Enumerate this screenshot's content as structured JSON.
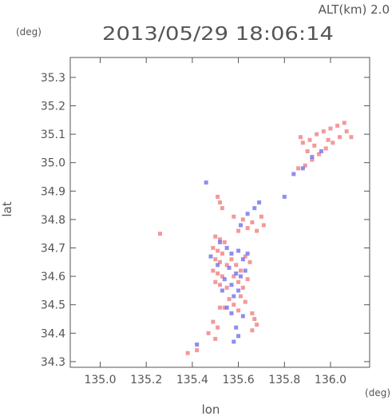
{
  "header": {
    "altitude_label": "ALT(km) 2.0",
    "timestamp": "2013/05/29 18:06:14"
  },
  "units": {
    "y_unit": "(deg)",
    "x_unit": "(deg)"
  },
  "colors": {
    "positive": "#f08080",
    "negative": "#7070f0",
    "axis": "#555555"
  },
  "chart_data": {
    "type": "scatter",
    "xlabel": "lon",
    "ylabel": "lat",
    "xlim": [
      134.87,
      136.17
    ],
    "ylim": [
      34.28,
      35.37
    ],
    "x_ticks": [
      135.0,
      135.2,
      135.4,
      135.6,
      135.8,
      136.0
    ],
    "x_tick_labels": [
      "135.0",
      "135.2",
      "135.4",
      "135.6",
      "135.8",
      "136.0"
    ],
    "y_ticks": [
      34.3,
      34.4,
      34.5,
      34.6,
      34.7,
      34.8,
      34.9,
      35.0,
      35.1,
      35.2,
      35.3
    ],
    "y_tick_labels": [
      "34.3",
      "34.4",
      "34.5",
      "34.6",
      "34.7",
      "34.8",
      "34.9",
      "35.0",
      "35.1",
      "35.2",
      "35.3"
    ],
    "grid": false,
    "series": [
      {
        "color_key": "positive",
        "points": [
          [
            135.51,
            34.88
          ],
          [
            135.52,
            34.86
          ],
          [
            135.53,
            34.84
          ],
          [
            135.5,
            34.74
          ],
          [
            135.52,
            34.73
          ],
          [
            135.54,
            34.72
          ],
          [
            135.49,
            34.7
          ],
          [
            135.51,
            34.69
          ],
          [
            135.53,
            34.68
          ],
          [
            135.5,
            34.66
          ],
          [
            135.52,
            34.65
          ],
          [
            135.55,
            34.64
          ],
          [
            135.49,
            34.62
          ],
          [
            135.51,
            34.61
          ],
          [
            135.53,
            34.6
          ],
          [
            135.5,
            34.58
          ],
          [
            135.52,
            34.57
          ],
          [
            135.55,
            34.56
          ],
          [
            135.57,
            34.66
          ],
          [
            135.59,
            34.64
          ],
          [
            135.61,
            34.62
          ],
          [
            135.58,
            34.6
          ],
          [
            135.6,
            34.58
          ],
          [
            135.63,
            34.67
          ],
          [
            135.65,
            34.65
          ],
          [
            135.62,
            34.56
          ],
          [
            135.64,
            34.59
          ],
          [
            135.56,
            34.52
          ],
          [
            135.58,
            34.5
          ],
          [
            135.6,
            34.48
          ],
          [
            135.61,
            34.53
          ],
          [
            135.63,
            34.51
          ],
          [
            135.66,
            34.47
          ],
          [
            135.67,
            34.45
          ],
          [
            135.68,
            34.43
          ],
          [
            135.66,
            34.41
          ],
          [
            135.52,
            34.49
          ],
          [
            135.54,
            34.49
          ],
          [
            135.49,
            34.44
          ],
          [
            135.51,
            34.42
          ],
          [
            135.47,
            34.4
          ],
          [
            135.5,
            34.38
          ],
          [
            135.6,
            34.76
          ],
          [
            135.62,
            34.8
          ],
          [
            135.66,
            34.79
          ],
          [
            135.7,
            34.81
          ],
          [
            135.71,
            34.78
          ],
          [
            135.64,
            34.77
          ],
          [
            135.58,
            34.81
          ],
          [
            135.68,
            34.76
          ],
          [
            135.38,
            34.33
          ],
          [
            135.42,
            34.34
          ],
          [
            135.26,
            34.75
          ],
          [
            135.86,
            34.98
          ],
          [
            135.89,
            34.99
          ],
          [
            135.92,
            35.01
          ],
          [
            135.95,
            35.03
          ],
          [
            135.98,
            35.05
          ],
          [
            136.01,
            35.07
          ],
          [
            136.04,
            35.09
          ],
          [
            136.07,
            35.11
          ],
          [
            136.09,
            35.09
          ],
          [
            135.88,
            35.07
          ],
          [
            135.91,
            35.08
          ],
          [
            135.94,
            35.1
          ],
          [
            135.97,
            35.11
          ],
          [
            136.0,
            35.12
          ],
          [
            136.03,
            35.13
          ],
          [
            136.06,
            35.14
          ],
          [
            135.9,
            35.04
          ],
          [
            135.93,
            35.06
          ],
          [
            135.87,
            35.09
          ],
          [
            135.99,
            35.08
          ]
        ]
      },
      {
        "color_key": "negative",
        "points": [
          [
            135.52,
            34.72
          ],
          [
            135.55,
            34.7
          ],
          [
            135.57,
            34.68
          ],
          [
            135.6,
            34.69
          ],
          [
            135.62,
            34.66
          ],
          [
            135.64,
            34.68
          ],
          [
            135.56,
            34.63
          ],
          [
            135.59,
            34.61
          ],
          [
            135.61,
            34.6
          ],
          [
            135.54,
            34.59
          ],
          [
            135.57,
            34.57
          ],
          [
            135.6,
            34.55
          ],
          [
            135.58,
            34.53
          ],
          [
            135.55,
            34.49
          ],
          [
            135.57,
            34.47
          ],
          [
            135.59,
            34.42
          ],
          [
            135.6,
            34.39
          ],
          [
            135.58,
            34.37
          ],
          [
            135.62,
            34.46
          ],
          [
            135.61,
            34.78
          ],
          [
            135.64,
            34.82
          ],
          [
            135.67,
            34.84
          ],
          [
            135.69,
            34.86
          ],
          [
            135.8,
            34.88
          ],
          [
            135.84,
            34.96
          ],
          [
            135.88,
            34.98
          ],
          [
            135.92,
            35.02
          ],
          [
            135.96,
            35.04
          ],
          [
            135.51,
            34.64
          ],
          [
            135.53,
            34.55
          ],
          [
            135.48,
            34.67
          ],
          [
            135.63,
            34.62
          ],
          [
            135.42,
            34.36
          ],
          [
            135.46,
            34.93
          ]
        ]
      }
    ]
  }
}
